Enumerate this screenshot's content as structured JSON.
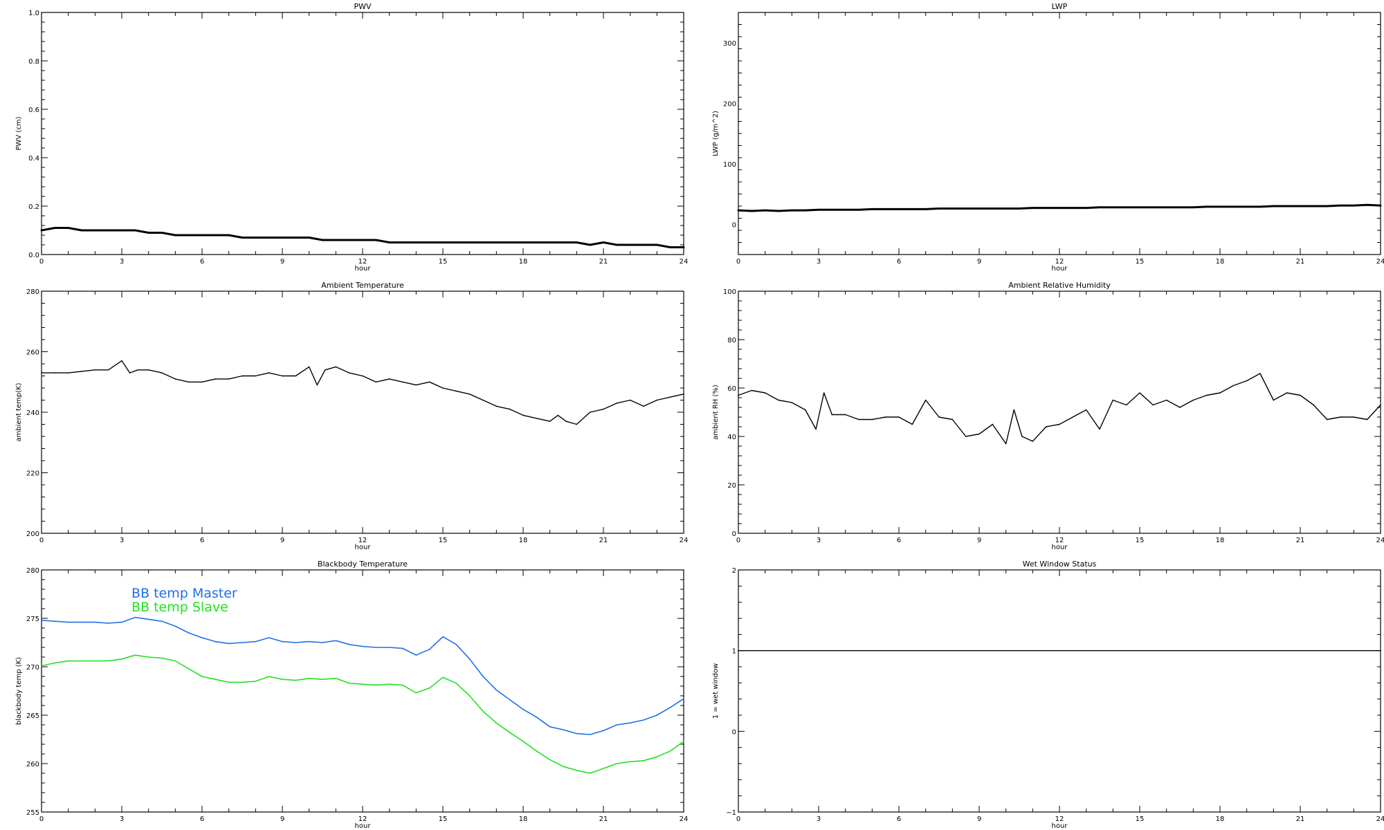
{
  "chart_data": [
    {
      "type": "line",
      "title": "PWV",
      "xlabel": "hour",
      "ylabel": "PWV (cm)",
      "xlim": [
        0,
        24
      ],
      "ylim": [
        0.0,
        1.0
      ],
      "xticks": [
        "0",
        "3",
        "6",
        "9",
        "12",
        "15",
        "18",
        "21",
        "24"
      ],
      "yticks": [
        "0.0",
        "0.2",
        "0.4",
        "0.6",
        "0.8",
        "1.0"
      ],
      "grid": false,
      "series": [
        {
          "color": "#000000",
          "x": [
            0,
            0.5,
            1,
            1.5,
            2,
            2.5,
            3,
            3.5,
            4,
            4.5,
            5,
            5.5,
            6,
            6.5,
            7,
            7.5,
            8,
            8.5,
            9,
            9.5,
            10,
            10.5,
            11,
            11.5,
            12,
            12.5,
            13,
            13.5,
            14,
            14.5,
            15,
            15.5,
            16,
            16.5,
            17,
            17.5,
            18,
            18.5,
            19,
            19.5,
            20,
            20.5,
            21,
            21.5,
            22,
            22.5,
            23,
            23.5,
            24
          ],
          "y": [
            0.1,
            0.11,
            0.11,
            0.1,
            0.1,
            0.1,
            0.1,
            0.1,
            0.09,
            0.09,
            0.08,
            0.08,
            0.08,
            0.08,
            0.08,
            0.07,
            0.07,
            0.07,
            0.07,
            0.07,
            0.07,
            0.06,
            0.06,
            0.06,
            0.06,
            0.06,
            0.05,
            0.05,
            0.05,
            0.05,
            0.05,
            0.05,
            0.05,
            0.05,
            0.05,
            0.05,
            0.05,
            0.05,
            0.05,
            0.05,
            0.05,
            0.04,
            0.05,
            0.04,
            0.04,
            0.04,
            0.04,
            0.03,
            0.03
          ]
        }
      ]
    },
    {
      "type": "line",
      "title": "LWP",
      "xlabel": "hour",
      "ylabel": "LWP (g/m^2)",
      "xlim": [
        0,
        24
      ],
      "ylim": [
        -50,
        350
      ],
      "xticks": [
        "0",
        "3",
        "6",
        "9",
        "12",
        "15",
        "18",
        "21",
        "24"
      ],
      "yticks": [
        "0",
        "100",
        "200",
        "300"
      ],
      "grid": false,
      "series": [
        {
          "color": "#000000",
          "x": [
            0,
            0.5,
            1,
            1.5,
            2,
            2.5,
            3,
            3.5,
            4,
            4.5,
            5,
            5.5,
            6,
            6.5,
            7,
            7.5,
            8,
            8.5,
            9,
            9.5,
            10,
            10.5,
            11,
            11.5,
            12,
            12.5,
            13,
            13.5,
            14,
            14.5,
            15,
            15.5,
            16,
            16.5,
            17,
            17.5,
            18,
            18.5,
            19,
            19.5,
            20,
            20.5,
            21,
            21.5,
            22,
            22.5,
            23,
            23.5,
            24
          ],
          "y": [
            23,
            22,
            23,
            22,
            23,
            23,
            24,
            24,
            24,
            24,
            25,
            25,
            25,
            25,
            25,
            26,
            26,
            26,
            26,
            26,
            26,
            26,
            27,
            27,
            27,
            27,
            27,
            28,
            28,
            28,
            28,
            28,
            28,
            28,
            28,
            29,
            29,
            29,
            29,
            29,
            30,
            30,
            30,
            30,
            30,
            31,
            31,
            32,
            31
          ]
        }
      ]
    },
    {
      "type": "line",
      "title": "Ambient Temperature",
      "xlabel": "hour",
      "ylabel": "ambient temp(K)",
      "xlim": [
        0,
        24
      ],
      "ylim": [
        200,
        280
      ],
      "xticks": [
        "0",
        "3",
        "6",
        "9",
        "12",
        "15",
        "18",
        "21",
        "24"
      ],
      "yticks": [
        "200",
        "220",
        "240",
        "260",
        "280"
      ],
      "grid": false,
      "series": [
        {
          "color": "#000000",
          "x": [
            0,
            0.5,
            1,
            1.5,
            2,
            2.5,
            3,
            3.3,
            3.6,
            4,
            4.5,
            5,
            5.5,
            6,
            6.5,
            7,
            7.5,
            8,
            8.5,
            9,
            9.5,
            10,
            10.3,
            10.6,
            11,
            11.5,
            12,
            12.5,
            13,
            13.5,
            14,
            14.5,
            15,
            15.5,
            16,
            16.5,
            17,
            17.5,
            18,
            18.5,
            19,
            19.3,
            19.6,
            20,
            20.5,
            21,
            21.5,
            22,
            22.5,
            23,
            23.5,
            24
          ],
          "y": [
            253,
            253,
            253,
            253.5,
            254,
            254,
            257,
            253,
            254,
            254,
            253,
            251,
            250,
            250,
            251,
            251,
            252,
            252,
            253,
            252,
            252,
            255,
            249,
            254,
            255,
            253,
            252,
            250,
            251,
            250,
            249,
            250,
            248,
            247,
            246,
            244,
            242,
            241,
            239,
            238,
            237,
            239,
            237,
            236,
            240,
            241,
            243,
            244,
            242,
            244,
            245,
            246
          ]
        }
      ]
    },
    {
      "type": "line",
      "title": "Ambient Relative Humidity",
      "xlabel": "hour",
      "ylabel": "ambient RH (%)",
      "xlim": [
        0,
        24
      ],
      "ylim": [
        0,
        100
      ],
      "xticks": [
        "0",
        "3",
        "6",
        "9",
        "12",
        "15",
        "18",
        "21",
        "24"
      ],
      "yticks": [
        "0",
        "20",
        "40",
        "60",
        "80",
        "100"
      ],
      "grid": false,
      "series": [
        {
          "color": "#000000",
          "x": [
            0,
            0.5,
            1,
            1.5,
            2,
            2.5,
            2.9,
            3.2,
            3.5,
            4,
            4.5,
            5,
            5.5,
            6,
            6.5,
            7,
            7.5,
            8,
            8.5,
            9,
            9.5,
            10,
            10.3,
            10.6,
            11,
            11.5,
            12,
            12.5,
            13,
            13.5,
            14,
            14.5,
            15,
            15.5,
            16,
            16.5,
            17,
            17.5,
            18,
            18.5,
            19,
            19.5,
            20,
            20.5,
            21,
            21.5,
            22,
            22.5,
            23,
            23.5,
            24
          ],
          "y": [
            57,
            59,
            58,
            55,
            54,
            51,
            43,
            58,
            49,
            49,
            47,
            47,
            48,
            48,
            45,
            55,
            48,
            47,
            40,
            41,
            45,
            37,
            51,
            40,
            38,
            44,
            45,
            48,
            51,
            43,
            55,
            53,
            58,
            53,
            55,
            52,
            55,
            57,
            58,
            61,
            63,
            66,
            55,
            58,
            57,
            53,
            47,
            48,
            48,
            47,
            53
          ]
        }
      ]
    },
    {
      "type": "line",
      "title": "Blackbody Temperature",
      "xlabel": "hour",
      "ylabel": "blackbody temp (K)",
      "xlim": [
        0,
        24
      ],
      "ylim": [
        255,
        280
      ],
      "xticks": [
        "0",
        "3",
        "6",
        "9",
        "12",
        "15",
        "18",
        "21",
        "24"
      ],
      "yticks": [
        "255",
        "260",
        "265",
        "270",
        "275",
        "280"
      ],
      "grid": false,
      "legend": {
        "position": "top-left"
      },
      "series": [
        {
          "name": "BB temp Master",
          "color": "#1e6fe6",
          "x": [
            0,
            0.5,
            1,
            1.5,
            2,
            2.5,
            3,
            3.5,
            4,
            4.5,
            5,
            5.5,
            6,
            6.5,
            7,
            7.5,
            8,
            8.5,
            9,
            9.5,
            10,
            10.5,
            11,
            11.5,
            12,
            12.5,
            13,
            13.5,
            14,
            14.5,
            15,
            15.5,
            16,
            16.5,
            17,
            17.5,
            18,
            18.5,
            19,
            19.5,
            20,
            20.5,
            21,
            21.5,
            22,
            22.5,
            23,
            23.5,
            24
          ],
          "y": [
            274.8,
            274.7,
            274.6,
            274.6,
            274.6,
            274.5,
            274.6,
            275.1,
            274.9,
            274.7,
            274.2,
            273.5,
            273.0,
            272.6,
            272.4,
            272.5,
            272.6,
            273.0,
            272.6,
            272.5,
            272.6,
            272.5,
            272.7,
            272.3,
            272.1,
            272.0,
            272.0,
            271.9,
            271.2,
            271.8,
            273.1,
            272.3,
            270.8,
            269.0,
            267.6,
            266.6,
            265.6,
            264.8,
            263.8,
            263.5,
            263.1,
            263.0,
            263.4,
            264.0,
            264.2,
            264.5,
            265.0,
            265.8,
            266.7
          ]
        },
        {
          "name": "BB temp Slave",
          "color": "#22e022",
          "x": [
            0,
            0.5,
            1,
            1.5,
            2,
            2.5,
            3,
            3.5,
            4,
            4.5,
            5,
            5.5,
            6,
            6.5,
            7,
            7.5,
            8,
            8.5,
            9,
            9.5,
            10,
            10.5,
            11,
            11.5,
            12,
            12.5,
            13,
            13.5,
            14,
            14.5,
            15,
            15.5,
            16,
            16.5,
            17,
            17.5,
            18,
            18.5,
            19,
            19.5,
            20,
            20.5,
            21,
            21.5,
            22,
            22.5,
            23,
            23.5,
            24
          ],
          "y": [
            270.1,
            270.4,
            270.6,
            270.6,
            270.6,
            270.6,
            270.8,
            271.2,
            271.0,
            270.9,
            270.6,
            269.8,
            269.0,
            268.7,
            268.4,
            268.4,
            268.5,
            269.0,
            268.7,
            268.6,
            268.8,
            268.7,
            268.8,
            268.3,
            268.2,
            268.1,
            268.2,
            268.1,
            267.3,
            267.8,
            268.9,
            268.3,
            267.0,
            265.4,
            264.2,
            263.2,
            262.3,
            261.3,
            260.4,
            259.7,
            259.3,
            259.0,
            259.5,
            260.0,
            260.2,
            260.3,
            260.7,
            261.3,
            262.3
          ]
        }
      ]
    },
    {
      "type": "line",
      "title": "Wet Window Status",
      "xlabel": "hour",
      "ylabel": "1 = wet window",
      "xlim": [
        0,
        24
      ],
      "ylim": [
        -1,
        2
      ],
      "xticks": [
        "0",
        "3",
        "6",
        "9",
        "12",
        "15",
        "18",
        "21",
        "24"
      ],
      "yticks": [
        "−1",
        "0",
        "1",
        "2"
      ],
      "grid": false,
      "series": [
        {
          "color": "#000000",
          "x": [
            0,
            24
          ],
          "y": [
            1,
            1
          ]
        }
      ]
    }
  ]
}
